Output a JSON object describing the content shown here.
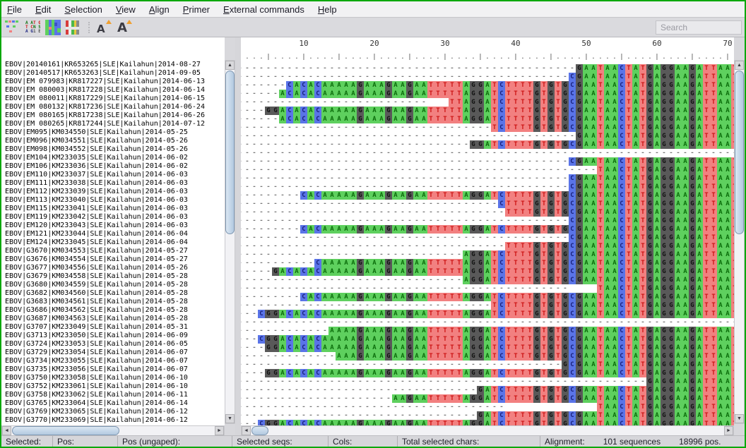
{
  "menu": {
    "items": [
      "File",
      "Edit",
      "Selection",
      "View",
      "Align",
      "Primer",
      "External commands",
      "Help"
    ]
  },
  "toolbar": {
    "icons": [
      "alignment-colors-icon",
      "character-colors-icon",
      "highlight-mosaic-icon",
      "color-bars-icon"
    ],
    "font_icons": [
      "decrease-font-icon",
      "increase-font-icon"
    ],
    "search_placeholder": "Search"
  },
  "alignment": {
    "reference": "CGGACACACAAAAAGAAAGAAGAATTTTTAGGATCTTTTGTGTGCGAATAACTATGAGGAAGATTAAT",
    "visible_columns": 71,
    "ruler_numbers": [
      10,
      20,
      30,
      40,
      50,
      60,
      70
    ],
    "colors": {
      "A": "#5ed05e",
      "C": "#5a74e8",
      "G": "#595959",
      "T": "#f28080"
    }
  },
  "sequences": [
    {
      "name": "EBOV|20140161|KR653265|SLE|Kailahun|2014-08-27",
      "start": 46
    },
    {
      "name": "EBOV|20140517|KR653263|SLE|Kailahun|2014-09-05",
      "start": 45
    },
    {
      "name": "EBOV|EM 079983|KR817227|SLE|Kailahun|2014-06-13",
      "start": 5
    },
    {
      "name": "EBOV|EM 080003|KR817228|SLE|Kailahun|2014-06-14",
      "start": 4
    },
    {
      "name": "EBOV|EM 080011|KR817229|SLE|Kailahun|2014-06-15",
      "start": 28,
      "dashEnd": 27
    },
    {
      "name": "EBOV|EM 080132|KR817236|SLE|Kailahun|2014-06-24",
      "start": 2
    },
    {
      "name": "EBOV|EM 080165|KR817238|SLE|Kailahun|2014-06-26",
      "start": 4
    },
    {
      "name": "EBOV|EM 080265|KR817244|SLE|Kailahun|2014-07-12",
      "start": 34
    },
    {
      "name": "EBOV|EM095|KM034550|SLE|Kailahun|2014-05-25",
      "start": 46
    },
    {
      "name": "EBOV|EM096|KM034551|SLE|Kailahun|2014-05-26",
      "start": 31
    },
    {
      "name": "EBOV|EM098|KM034552|SLE|Kailahun|2014-05-26",
      "start": null
    },
    {
      "name": "EBOV|EM104|KM233035|SLE|Kailahun|2014-06-02",
      "start": 45
    },
    {
      "name": "EBOV|EM106|KM233036|SLE|Kailahun|2014-06-02",
      "start": 49
    },
    {
      "name": "EBOV|EM110|KM233037|SLE|Kailahun|2014-06-03",
      "start": 45
    },
    {
      "name": "EBOV|EM111|KM233038|SLE|Kailahun|2014-06-03",
      "start": 45
    },
    {
      "name": "EBOV|EM112|KM233039|SLE|Kailahun|2014-06-03",
      "start": 7
    },
    {
      "name": "EBOV|EM113|KM233040|SLE|Kailahun|2014-06-03",
      "start": 35
    },
    {
      "name": "EBOV|EM115|KM233041|SLE|Kailahun|2014-06-03",
      "start": 36
    },
    {
      "name": "EBOV|EM119|KM233042|SLE|Kailahun|2014-06-03",
      "start": 45
    },
    {
      "name": "EBOV|EM120|KM233043|SLE|Kailahun|2014-06-03",
      "start": 7
    },
    {
      "name": "EBOV|EM121|KM233044|SLE|Kailahun|2014-06-04",
      "start": 45
    },
    {
      "name": "EBOV|EM124|KM233045|SLE|Kailahun|2014-06-04",
      "start": 36
    },
    {
      "name": "EBOV|G3670|KM034553|SLE|Kailahun|2014-05-27",
      "start": 30
    },
    {
      "name": "EBOV|G3676|KM034554|SLE|Kailahun|2014-05-27",
      "start": 9
    },
    {
      "name": "EBOV|G3677|KM034556|SLE|Kailahun|2014-05-26",
      "start": 3
    },
    {
      "name": "EBOV|G3679|KM034558|SLE|Kailahun|2014-05-28",
      "start": 30
    },
    {
      "name": "EBOV|G3680|KM034559|SLE|Kailahun|2014-05-28",
      "start": 49,
      "dashEnd": 47
    },
    {
      "name": "EBOV|G3682|KM034560|SLE|Kailahun|2014-05-28",
      "start": 7
    },
    {
      "name": "EBOV|G3683|KM034561|SLE|Kailahun|2014-05-28",
      "start": 34
    },
    {
      "name": "EBOV|G3686|KM034562|SLE|Kailahun|2014-05-28",
      "start": 1
    },
    {
      "name": "EBOV|G3687|KM034563|SLE|Kailahun|2014-05-28",
      "start": null
    },
    {
      "name": "EBOV|G3707|KM233049|SLE|Kailahun|2014-05-31",
      "start": 11
    },
    {
      "name": "EBOV|G3713|KM233050|SLE|Kailahun|2014-06-09",
      "start": 1
    },
    {
      "name": "EBOV|G3724|KM233053|SLE|Kailahun|2014-06-05",
      "start": 2
    },
    {
      "name": "EBOV|G3729|KM233054|SLE|Kailahun|2014-06-07",
      "start": 12
    },
    {
      "name": "EBOV|G3734|KM233055|SLE|Kailahun|2014-06-07",
      "start": 44
    },
    {
      "name": "EBOV|G3735|KM233056|SLE|Kailahun|2014-06-07",
      "start": 2
    },
    {
      "name": "EBOV|G3750|KM233058|SLE|Kailahun|2014-06-10",
      "start": 56
    },
    {
      "name": "EBOV|G3752|KM233061|SLE|Kailahun|2014-06-10",
      "start": 32
    },
    {
      "name": "EBOV|G3758|KM233062|SLE|Kailahun|2014-06-11",
      "start": 20
    },
    {
      "name": "EBOV|G3765|KM233064|SLE|Kailahun|2014-06-14",
      "start": 49,
      "dashEnd": 38
    },
    {
      "name": "EBOV|G3769|KM233065|SLE|Kailahun|2014-06-12",
      "start": 32
    },
    {
      "name": "EBOV|G3770|KM233069|SLE|Kailahun|2014-06-12",
      "start": 1
    },
    {
      "name": "",
      "start": 1
    }
  ],
  "statusbar": {
    "fields": [
      "Selected:",
      "Pos:",
      "Pos (ungaped):",
      "Selected seqs:",
      "Cols:",
      "Total selected chars:"
    ],
    "alignment_label": "Alignment:",
    "alignment_sequences": "101 sequences",
    "alignment_positions": "18996 pos."
  }
}
